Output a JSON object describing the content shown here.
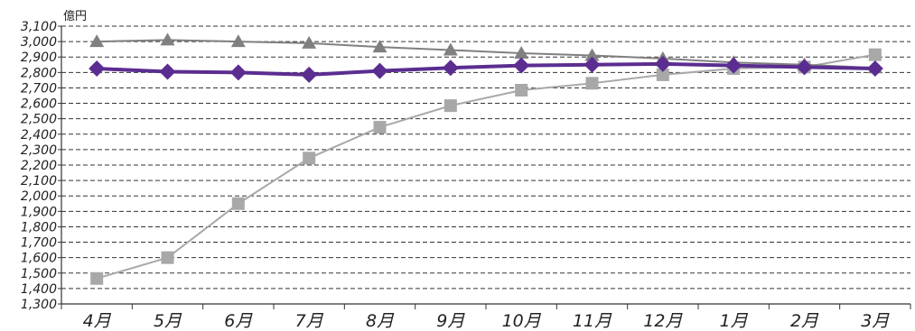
{
  "chart_data": {
    "type": "line",
    "unit_label": "億円",
    "categories": [
      "4月",
      "5月",
      "6月",
      "7月",
      "8月",
      "9月",
      "10月",
      "11月",
      "12月",
      "1月",
      "2月",
      "3月"
    ],
    "ylim": [
      1300,
      3100
    ],
    "ytick_step": 100,
    "ytick_labels": [
      "1,300",
      "1,400",
      "1,500",
      "1,600",
      "1,700",
      "1,800",
      "1,900",
      "2,000",
      "2,100",
      "2,200",
      "2,300",
      "2,400",
      "2,500",
      "2,600",
      "2,700",
      "2,800",
      "2,900",
      "3,000",
      "3,100"
    ],
    "grid": "horizontal-dashed",
    "series": [
      {
        "marker": "triangle",
        "color": "#808080",
        "values": [
          3000,
          3010,
          3000,
          2990,
          2965,
          2945,
          2925,
          2910,
          2890,
          2865,
          2850,
          2830
        ]
      },
      {
        "marker": "diamond",
        "color": "#5b2d90",
        "values": [
          2825,
          2805,
          2800,
          2785,
          2810,
          2830,
          2845,
          2850,
          2855,
          2845,
          2835,
          2825
        ]
      },
      {
        "marker": "square",
        "color": "#a8a8a8",
        "values": [
          1465,
          1600,
          1950,
          2245,
          2445,
          2585,
          2685,
          2730,
          2785,
          2825,
          2835,
          2915
        ]
      }
    ]
  }
}
